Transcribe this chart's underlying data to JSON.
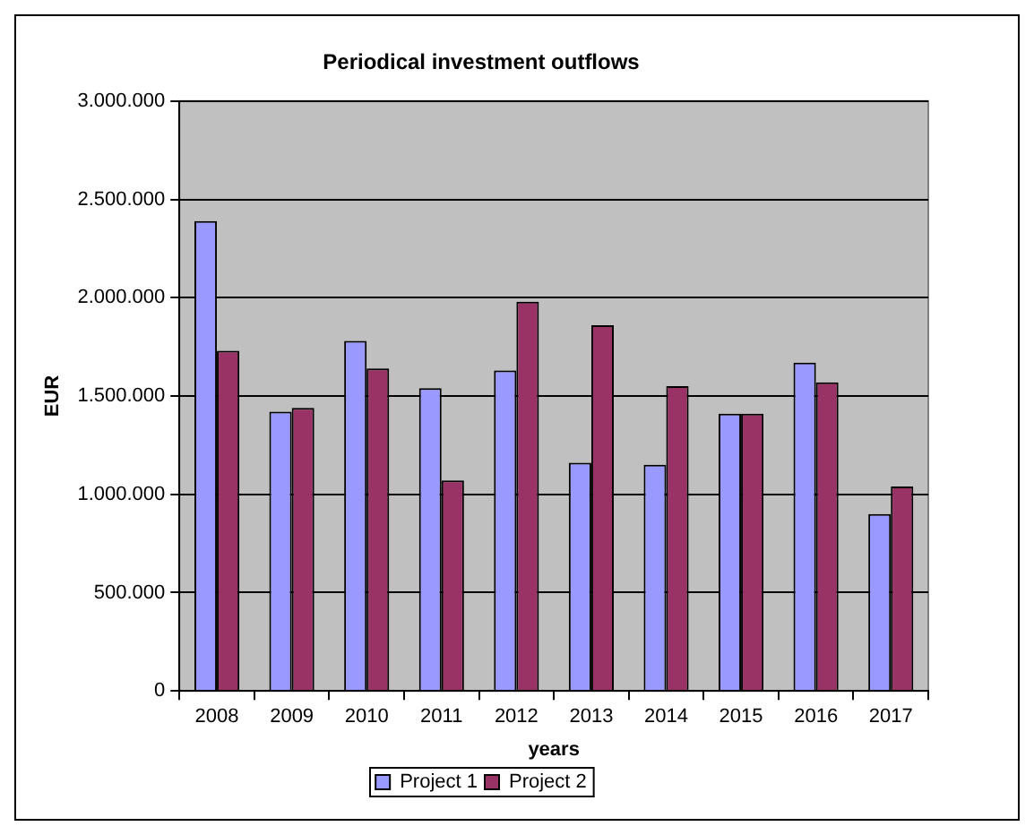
{
  "chart_data": {
    "type": "bar",
    "title": "Periodical investment outflows",
    "xlabel": "years",
    "ylabel": "EUR",
    "categories": [
      "2008",
      "2009",
      "2010",
      "2011",
      "2012",
      "2013",
      "2014",
      "2015",
      "2016",
      "2017"
    ],
    "series": [
      {
        "name": "Project 1",
        "color": "#9999ff",
        "values": [
          2390000,
          1420000,
          1780000,
          1540000,
          1630000,
          1160000,
          1150000,
          1410000,
          1670000,
          900000
        ]
      },
      {
        "name": "Project 2",
        "color": "#993366",
        "values": [
          1730000,
          1440000,
          1640000,
          1070000,
          1980000,
          1860000,
          1550000,
          1410000,
          1570000,
          1040000
        ]
      }
    ],
    "ylim": [
      0,
      3000000
    ],
    "yticks": [
      0,
      {
        "value": 500000,
        "label": "500.000"
      },
      {
        "value": 1000000,
        "label": "1.000.000"
      },
      {
        "value": 1500000,
        "label": "1.500.000"
      },
      {
        "value": 2000000,
        "label": "2.000.000"
      },
      {
        "value": 2500000,
        "label": "2.500.000"
      },
      {
        "value": 3000000,
        "label": "3.000.000"
      }
    ],
    "grid": "y",
    "legend": "bottom"
  }
}
